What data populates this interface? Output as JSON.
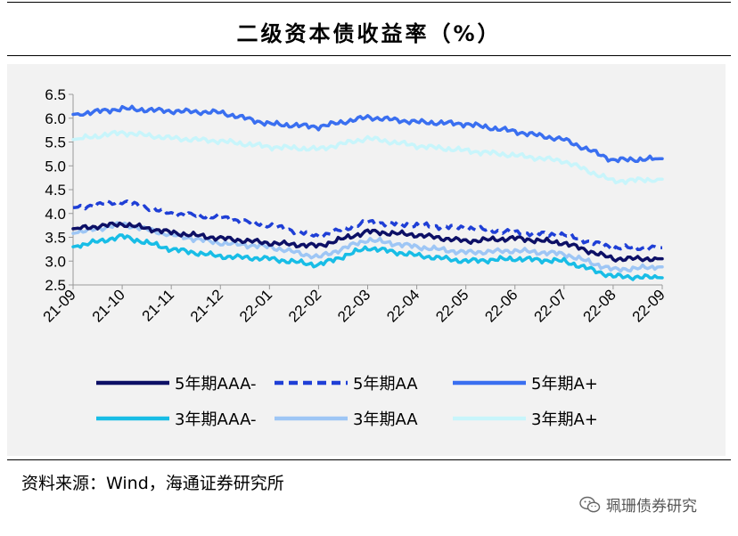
{
  "title": "二级资本债收益率（%）",
  "source": "资料来源：Wind，海通证券研究所",
  "watermark": "珮珊债券研究",
  "watermark_icon": "wechat-icon",
  "chart_data": {
    "type": "line",
    "title": "二级资本债收益率（%）",
    "xlabel": "",
    "ylabel": "",
    "ylim": [
      2.5,
      6.5
    ],
    "yticks": [
      "2.5",
      "3.0",
      "3.5",
      "4.0",
      "4.5",
      "5.0",
      "5.5",
      "6.0",
      "6.5"
    ],
    "categories": [
      "21-09",
      "21-10",
      "21-11",
      "21-12",
      "22-01",
      "22-02",
      "22-03",
      "22-04",
      "22-05",
      "22-06",
      "22-07",
      "22-08",
      "22-09"
    ],
    "legend_position": "bottom",
    "grid": false,
    "series": [
      {
        "name": "5年期AAA-",
        "color": "#0d1066",
        "dash": false,
        "values": [
          3.68,
          3.78,
          3.6,
          3.48,
          3.38,
          3.32,
          3.62,
          3.55,
          3.42,
          3.48,
          3.38,
          3.05,
          3.05
        ]
      },
      {
        "name": "5年期AA",
        "color": "#1f3fd6",
        "dash": true,
        "values": [
          4.12,
          4.25,
          4.0,
          3.92,
          3.75,
          3.52,
          3.82,
          3.75,
          3.7,
          3.6,
          3.55,
          3.28,
          3.28
        ]
      },
      {
        "name": "5年期A+",
        "color": "#3a6ff0",
        "dash": false,
        "values": [
          6.08,
          6.2,
          6.15,
          6.12,
          5.88,
          5.82,
          6.02,
          5.92,
          5.88,
          5.72,
          5.55,
          5.12,
          5.15
        ]
      },
      {
        "name": "3年期AAA-",
        "color": "#18bde6",
        "dash": false,
        "values": [
          3.3,
          3.52,
          3.25,
          3.1,
          3.05,
          2.92,
          3.28,
          3.12,
          3.0,
          3.05,
          3.0,
          2.68,
          2.65
        ]
      },
      {
        "name": "3年期AA",
        "color": "#9ec6f5",
        "dash": false,
        "values": [
          3.58,
          3.78,
          3.55,
          3.38,
          3.3,
          3.08,
          3.45,
          3.3,
          3.18,
          3.22,
          3.15,
          2.82,
          2.88
        ]
      },
      {
        "name": "3年期A+",
        "color": "#c8f5fb",
        "dash": false,
        "values": [
          5.55,
          5.7,
          5.58,
          5.52,
          5.4,
          5.35,
          5.58,
          5.42,
          5.32,
          5.22,
          5.1,
          4.68,
          4.72
        ]
      }
    ]
  }
}
